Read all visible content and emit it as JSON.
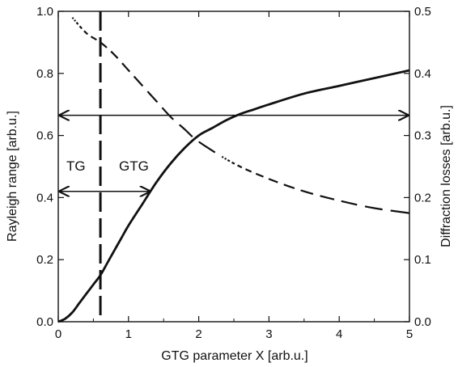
{
  "chart_data": {
    "type": "line",
    "xlabel": "GTG parameter X [arb.u.]",
    "ylabel_left": "Rayleigh range [arb.u.]",
    "ylabel_right": "Diffraction losses [arb.u.]",
    "xlim": [
      0,
      5
    ],
    "ylim_left": [
      0,
      1.0
    ],
    "ylim_right": [
      0,
      0.5
    ],
    "x_ticks": [
      "0",
      "1",
      "2",
      "3",
      "4",
      "5"
    ],
    "y_ticks_left": [
      "0.0",
      "0.2",
      "0.4",
      "0.6",
      "0.8",
      "1.0"
    ],
    "y_ticks_right": [
      "0.0",
      "0.1",
      "0.2",
      "0.3",
      "0.4",
      "0.5"
    ],
    "grid": false,
    "series": [
      {
        "axis": "left",
        "style": "solid",
        "x": [
          0,
          0.1,
          0.2,
          0.3,
          0.4,
          0.5,
          0.6,
          0.7,
          0.8,
          0.9,
          1.0,
          1.2,
          1.4,
          1.6,
          1.8,
          2.0,
          2.2,
          2.4,
          2.6,
          2.8,
          3.0,
          3.5,
          4.0,
          4.5,
          5.0
        ],
        "y": [
          0.0,
          0.01,
          0.03,
          0.06,
          0.09,
          0.12,
          0.15,
          0.19,
          0.23,
          0.27,
          0.31,
          0.38,
          0.45,
          0.51,
          0.56,
          0.6,
          0.625,
          0.65,
          0.67,
          0.685,
          0.7,
          0.735,
          0.76,
          0.785,
          0.81
        ]
      },
      {
        "axis": "right",
        "style": "dashed",
        "x": [
          0.2,
          0.4,
          0.6,
          0.8,
          1.0,
          1.2,
          1.4,
          1.6,
          1.8,
          2.0,
          2.5,
          3.0,
          3.5,
          4.0,
          4.5,
          5.0
        ],
        "y": [
          0.49,
          0.465,
          0.45,
          0.43,
          0.405,
          0.38,
          0.355,
          0.33,
          0.31,
          0.29,
          0.255,
          0.23,
          0.21,
          0.195,
          0.183,
          0.175
        ]
      }
    ],
    "annotations": {
      "vline_x": 0.6,
      "arrow_long": {
        "x1": 0,
        "x2": 5,
        "y": 0.665
      },
      "arrow_short": {
        "x1": 0,
        "x2": 1.3,
        "y": 0.42
      },
      "label_tg": "TG",
      "label_gtg": "GTG"
    }
  }
}
